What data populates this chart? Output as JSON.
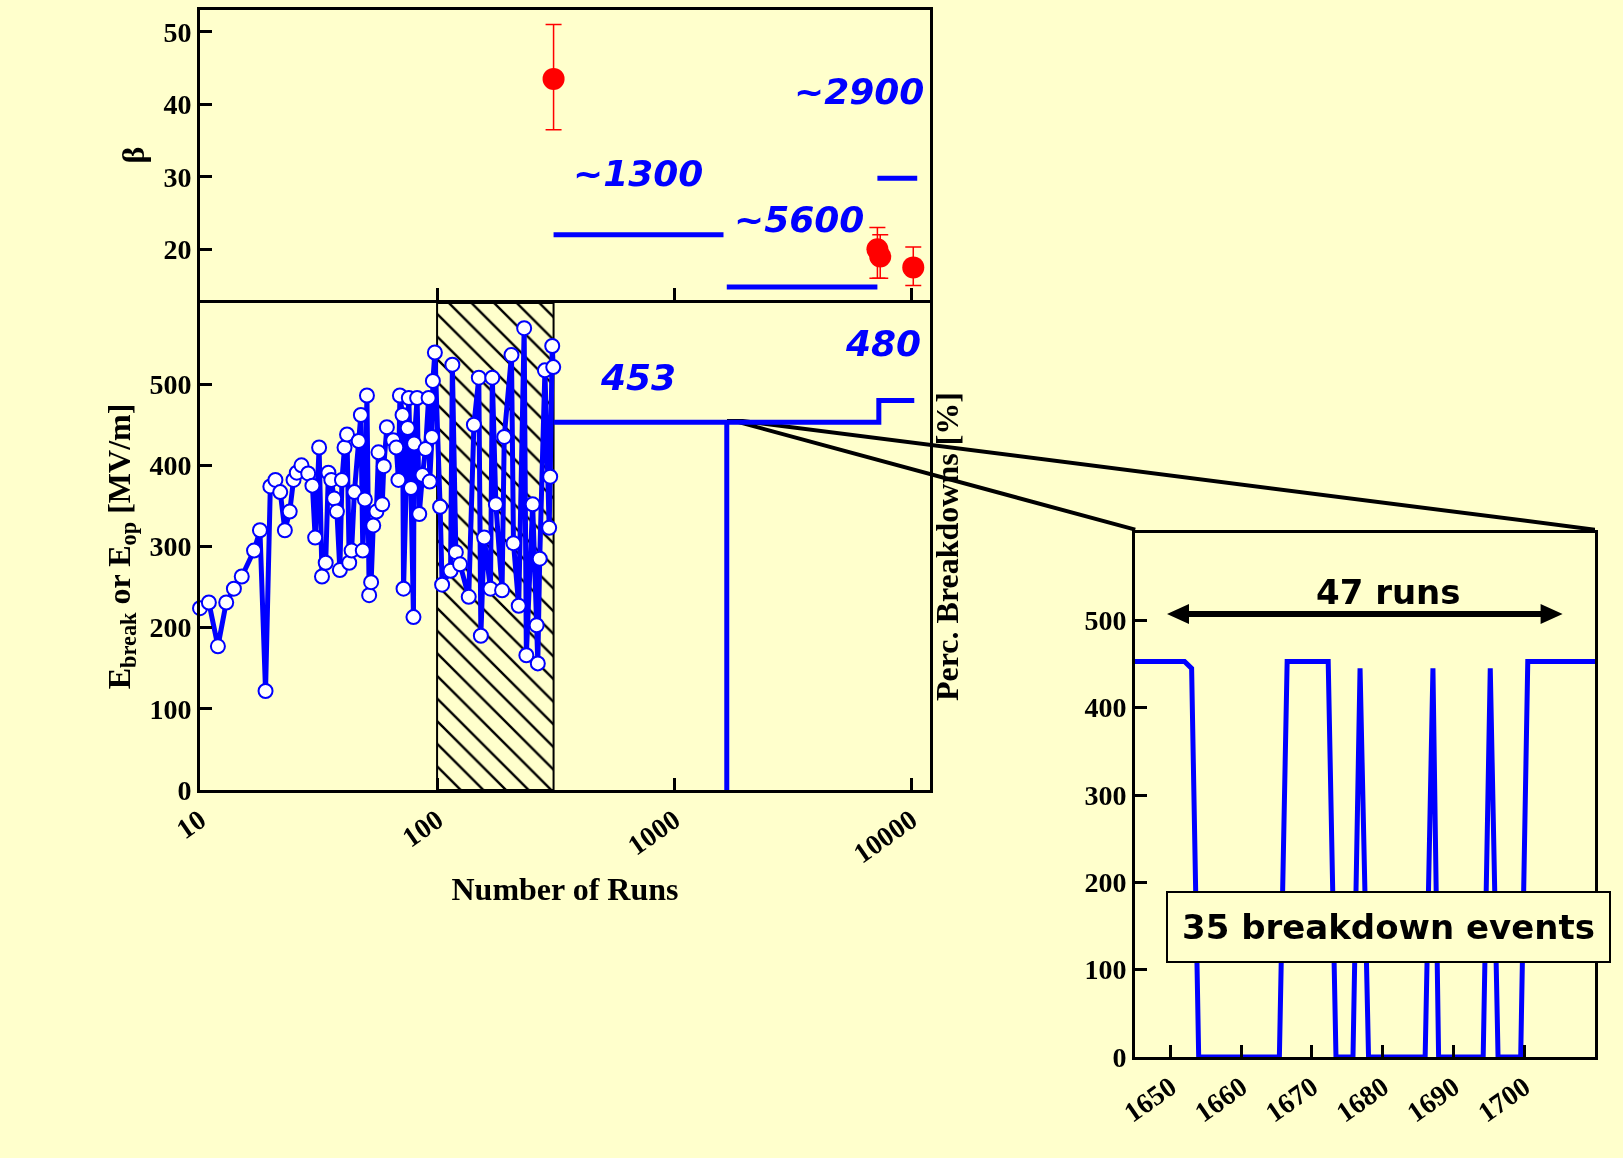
{
  "chart_data": [
    {
      "type": "scatter",
      "ylabel": "β",
      "xlim": [
        10,
        12000
      ],
      "xticks": [
        10,
        100,
        1000,
        10000
      ],
      "log": "x",
      "ylim": [
        13,
        53
      ],
      "yticks": [
        20,
        30,
        40,
        50
      ],
      "tick_labels": "y",
      "grid": false,
      "series": [
        {
          "color": "#ff0000",
          "marker": "circle",
          "x": [
            310,
            7200,
            7400,
            10200
          ],
          "values": [
            43.5,
            20,
            19,
            17.5
          ],
          "errors": [
            [
              36.5,
              51
            ],
            [
              16,
              23
            ],
            [
              16,
              22
            ],
            [
              15,
              20.3
            ]
          ]
        },
        {
          "type": "line",
          "color": "#0000ff",
          "x": [
            310,
            1615
          ],
          "values": [
            22,
            22
          ]
        },
        {
          "type": "line",
          "color": "#0000ff",
          "x": [
            1667,
            7200
          ],
          "values": [
            14.8,
            14.8
          ]
        },
        {
          "type": "line",
          "color": "#0000ff",
          "x": [
            7200,
            10600
          ],
          "values": [
            29.8,
            29.8
          ]
        }
      ],
      "annotations": [
        "~1300",
        "~5600",
        "~2900"
      ]
    },
    {
      "type": "line",
      "xlabel": "Number of Runs",
      "ylabel": "E$_{break}$ or E$_{op}$ [MV/m]",
      "y2label": "Perc. Breakdowns [%]",
      "xlim": [
        10,
        12000
      ],
      "xticks": [
        10,
        100,
        1000,
        10000
      ],
      "log": "x",
      "ylim": [
        0,
        600
      ],
      "yticks": [
        0,
        100,
        200,
        300,
        400,
        500
      ],
      "grid": false,
      "bands": [
        {
          "axis": "x",
          "from": 100,
          "to": 310
        }
      ],
      "series": [
        {
          "color": "#0000ff",
          "marker": "circle",
          "x": [
            10,
            10.9,
            11.9,
            12.9,
            13.9,
            15.0,
            16.9,
            17.9,
            18.9,
            19.8,
            20.8,
            21.8,
            22.8,
            23.9,
            24.8,
            25.6,
            26.8,
            28.6,
            29.8,
            30.6,
            31.8,
            32.7,
            33.9,
            34.8,
            35.8,
            36.8,
            37.8,
            38.9,
            39.7,
            40.7,
            41.7,
            42.6,
            43.6,
            44.8,
            46.7,
            47.7,
            48.6,
            49.6,
            50.6,
            51.7,
            52.7,
            53.8,
            55.5,
            56.6,
            58.7,
            59.6,
            61.4,
            65.3,
            67.3,
            68.7,
            69.7,
            71.5,
            72.2,
            75.2,
            76.0,
            77.6,
            79.5,
            80.0,
            82.4,
            84.1,
            86.8,
            89.4,
            92.1,
            93.1,
            95.1,
            96.0,
            97.9,
            103,
            105,
            114,
            116,
            120,
            125,
            136,
            143,
            150,
            153,
            158,
            168,
            171,
            177,
            188,
            192,
            206,
            210,
            221,
            233,
            238,
            253,
            263,
            266,
            271,
            285,
            297,
            300,
            306,
            309
          ],
          "values": [
            224,
            231,
            177,
            231,
            248,
            263,
            295,
            320,
            122,
            374,
            382,
            367,
            320,
            343,
            382,
            391,
            400,
            390,
            375,
            311,
            422,
            263,
            280,
            391,
            382,
            359,
            343,
            271,
            382,
            422,
            438,
            280,
            295,
            367,
            430,
            462,
            295,
            358,
            486,
            240,
            256,
            326,
            343,
            416,
            352,
            399,
            447,
            431,
            422,
            382,
            486,
            462,
            248,
            446,
            483,
            372,
            213,
            427,
            483,
            340,
            388,
            420,
            483,
            380,
            435,
            504,
            539,
            349,
            253,
            270,
            524,
            293,
            278,
            238,
            450,
            508,
            190,
            311,
            248,
            508,
            352,
            246,
            435,
            536,
            304,
            227,
            569,
            166,
            352,
            203,
            156,
            285,
            517,
            323,
            386,
            547,
            521
          ]
        },
        {
          "color": "#0000ff",
          "x": [
            310,
            7300,
            7300,
            10300
          ],
          "values": [
            453,
            453,
            480,
            480
          ]
        },
        {
          "color": "#0000ff",
          "x": [
            1667,
            1667
          ],
          "values": [
            0,
            453
          ]
        }
      ],
      "annotations": [
        "453",
        "480"
      ]
    },
    {
      "type": "line",
      "xlim": [
        1645,
        1710
      ],
      "xticks": [
        1650,
        1660,
        1670,
        1680,
        1690,
        1700
      ],
      "ylim": [
        0,
        600
      ],
      "yticks": [
        0,
        100,
        200,
        300,
        400,
        500
      ],
      "grid": false,
      "series": [
        {
          "color": "#0000ff",
          "x": [
            1645,
            1652,
            1653,
            1654,
            1665.4,
            1666.5,
            1672.3,
            1673.4,
            1675.8,
            1676.8,
            1678,
            1686,
            1687.1,
            1687.9,
            1694.2,
            1695.2,
            1696.3,
            1699.5,
            1700.5,
            1710
          ],
          "values": [
            453,
            453,
            445,
            0,
            0,
            453,
            453,
            0,
            0,
            445,
            0,
            0,
            445,
            0,
            0,
            445,
            0,
            0,
            453,
            453
          ]
        }
      ],
      "annotations": [
        "47 runs",
        "35 breakdown events"
      ]
    }
  ]
}
